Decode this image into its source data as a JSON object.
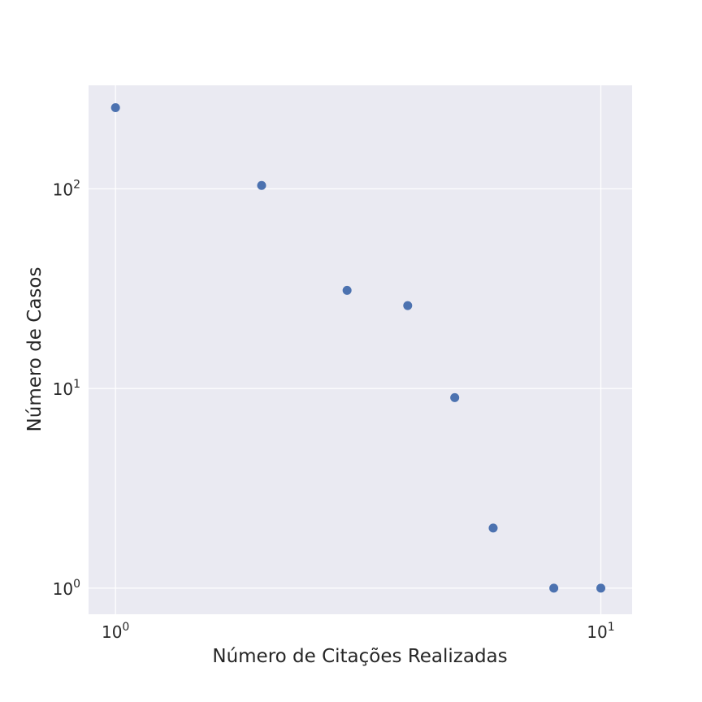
{
  "chart_data": {
    "type": "scatter",
    "xlabel": "Número de Citações Realizadas",
    "ylabel": "Número de Casos",
    "x_scale": "log",
    "y_scale": "log",
    "xlim": [
      0.88,
      11.6
    ],
    "ylim": [
      0.74,
      330
    ],
    "grid": true,
    "x_ticks": [
      {
        "value": 1,
        "base": "10",
        "exp": "0"
      },
      {
        "value": 10,
        "base": "10",
        "exp": "1"
      }
    ],
    "y_ticks": [
      {
        "value": 1,
        "base": "10",
        "exp": "0"
      },
      {
        "value": 10,
        "base": "10",
        "exp": "1"
      },
      {
        "value": 100,
        "base": "10",
        "exp": "2"
      }
    ],
    "points": [
      {
        "x": 1,
        "y": 255
      },
      {
        "x": 2,
        "y": 104
      },
      {
        "x": 3,
        "y": 31
      },
      {
        "x": 4,
        "y": 26
      },
      {
        "x": 5,
        "y": 9
      },
      {
        "x": 6,
        "y": 2
      },
      {
        "x": 8,
        "y": 1
      },
      {
        "x": 10,
        "y": 1
      }
    ],
    "colors": {
      "background": "#eaeaf2",
      "grid": "#ffffff",
      "marker": "#4c72b0"
    }
  }
}
